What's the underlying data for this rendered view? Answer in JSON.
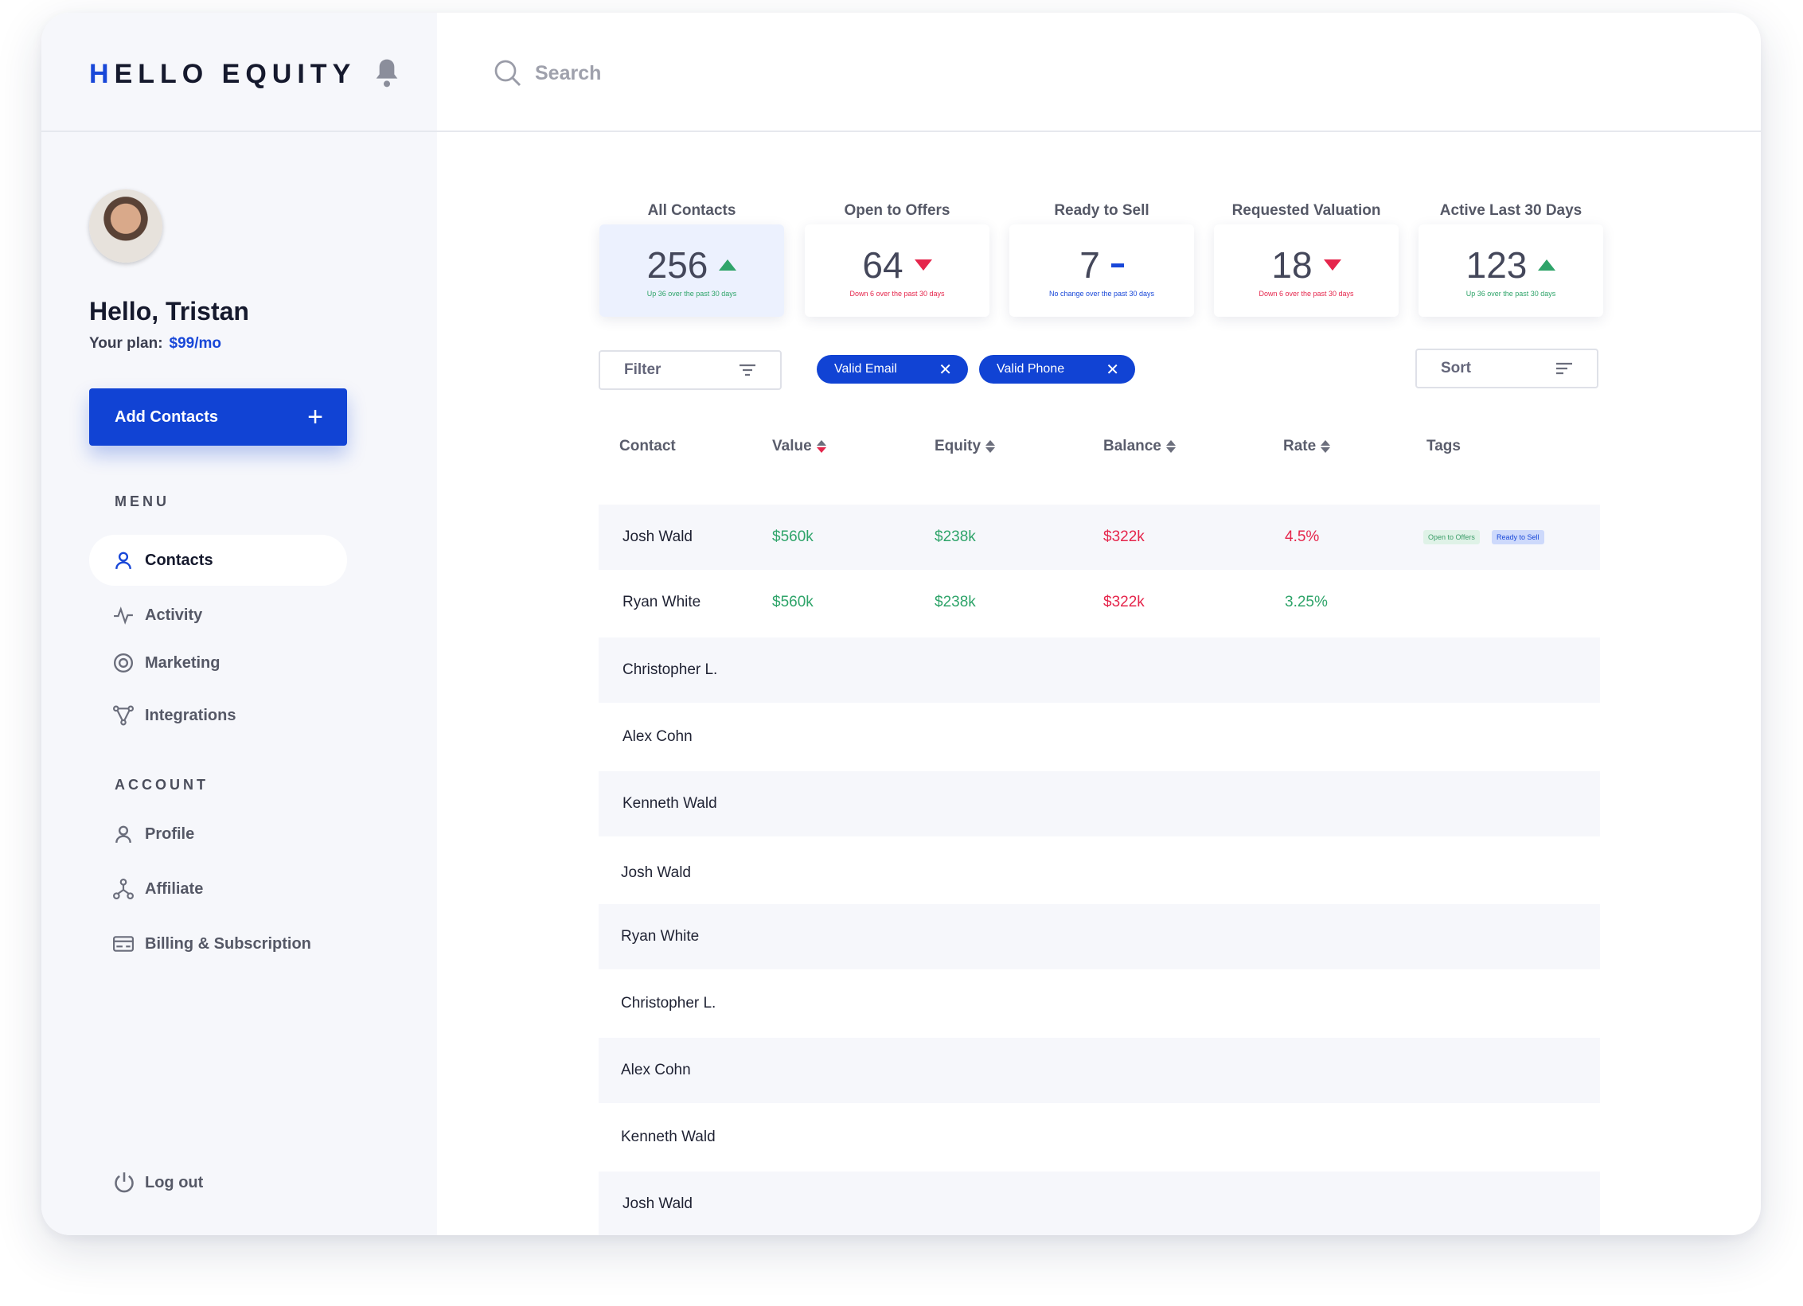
{
  "brand": {
    "logo_h": "H",
    "logo_rest": "ELLO EQUITY"
  },
  "search": {
    "placeholder": "Search"
  },
  "user": {
    "greeting": "Hello, Tristan",
    "plan_label": "Your plan:",
    "plan_price": "$99/mo"
  },
  "actions": {
    "add_contacts": "Add Contacts",
    "add_icon": "+"
  },
  "menu": {
    "label": "MENU",
    "items": [
      {
        "label": "Contacts",
        "icon": "person-icon",
        "active": true
      },
      {
        "label": "Activity",
        "icon": "activity-icon"
      },
      {
        "label": "Marketing",
        "icon": "target-icon"
      },
      {
        "label": "Integrations",
        "icon": "integrations-icon"
      }
    ]
  },
  "account": {
    "label": "ACCOUNT",
    "items": [
      {
        "label": "Profile",
        "icon": "person-icon"
      },
      {
        "label": "Affiliate",
        "icon": "affiliate-icon"
      },
      {
        "label": "Billing & Subscription",
        "icon": "card-icon"
      }
    ]
  },
  "logout": {
    "label": "Log out"
  },
  "stats": [
    {
      "label": "All Contacts",
      "value": "256",
      "trend": "up",
      "sub": "Up 36 over the past 30 days",
      "selected": true
    },
    {
      "label": "Open to Offers",
      "value": "64",
      "trend": "down",
      "sub": "Down 6 over the past 30 days"
    },
    {
      "label": "Ready to Sell",
      "value": "7",
      "trend": "flat",
      "sub": "No change over the past 30 days"
    },
    {
      "label": "Requested Valuation",
      "value": "18",
      "trend": "down",
      "sub": "Down 6 over the past 30 days"
    },
    {
      "label": "Active Last 30 Days",
      "value": "123",
      "trend": "up",
      "sub": "Up 36 over the past 30 days"
    }
  ],
  "filter": {
    "label": "Filter"
  },
  "sort": {
    "label": "Sort"
  },
  "chips": [
    {
      "label": "Valid Email",
      "close": "✕"
    },
    {
      "label": "Valid Phone",
      "close": "✕"
    }
  ],
  "table": {
    "headers": [
      "Contact",
      "Value",
      "Equity",
      "Balance",
      "Rate",
      "Tags"
    ],
    "rows": [
      {
        "name": "Josh Wald",
        "value": "$560k",
        "equity": "$238k",
        "balance": "$322k",
        "rate": "4.5%",
        "tags": [
          "Open to Offers",
          "Ready to Sell"
        ]
      },
      {
        "name": "Ryan White",
        "value": "$560k",
        "equity": "$238k",
        "balance": "$322k",
        "rate": "3.25%",
        "tags": []
      },
      {
        "name": "Christopher L."
      },
      {
        "name": "Alex Cohn"
      },
      {
        "name": "Kenneth Wald"
      },
      {
        "name": "Josh Wald"
      },
      {
        "name": "Ryan White"
      },
      {
        "name": "Christopher L."
      },
      {
        "name": "Alex Cohn"
      },
      {
        "name": "Kenneth Wald"
      },
      {
        "name": "Josh Wald"
      }
    ]
  },
  "colors": {
    "accent": "#1143d4",
    "up": "#2fa46a",
    "down": "#e5264c"
  }
}
